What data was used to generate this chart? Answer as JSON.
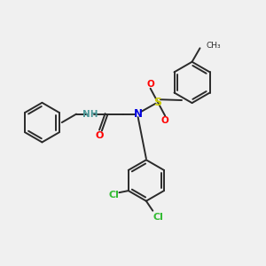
{
  "background_color": "#f0f0f0",
  "bond_color": "#2a2a2a",
  "bond_lw": 1.4,
  "atom_colors": {
    "N": "#0000e0",
    "O": "#ff0000",
    "S": "#cccc00",
    "Cl": "#33bb33",
    "NH": "#4a9999",
    "C": "#2a2a2a"
  },
  "figsize": [
    3.0,
    3.0
  ],
  "dpi": 100
}
